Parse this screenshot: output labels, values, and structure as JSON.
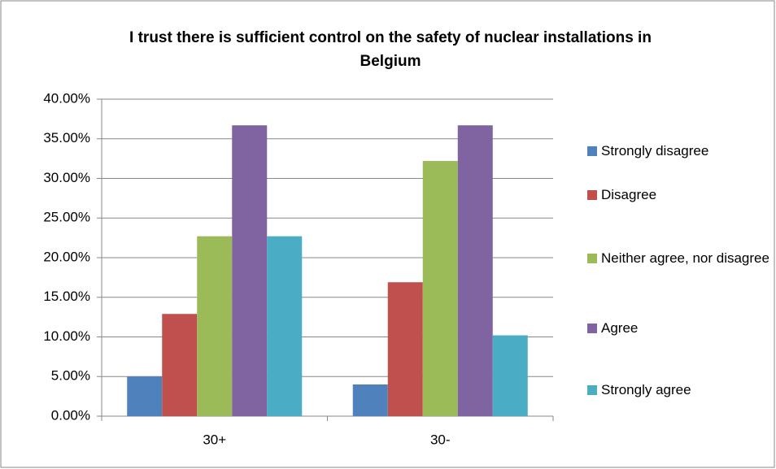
{
  "chart_data": {
    "type": "bar",
    "title": "I trust there is sufficient control on the safety of nuclear installations in Belgium",
    "categories": [
      "30+",
      "30-"
    ],
    "series": [
      {
        "name": "Strongly disagree",
        "color": "#4f81bd",
        "values": [
          5.0,
          4.0
        ]
      },
      {
        "name": "Disagree",
        "color": "#c0504d",
        "values": [
          12.9,
          16.9
        ]
      },
      {
        "name": "Neither agree, nor disagree",
        "color": "#9bbb59",
        "values": [
          22.7,
          32.2
        ]
      },
      {
        "name": "Agree",
        "color": "#8064a2",
        "values": [
          36.7,
          36.7
        ]
      },
      {
        "name": "Strongly agree",
        "color": "#4bacc6",
        "values": [
          22.7,
          10.2
        ]
      }
    ],
    "ylim": [
      0,
      40
    ],
    "yticks": [
      {
        "value": 0,
        "label": "0.00%"
      },
      {
        "value": 5,
        "label": "5.00%"
      },
      {
        "value": 10,
        "label": "10.00%"
      },
      {
        "value": 15,
        "label": "15.00%"
      },
      {
        "value": 20,
        "label": "20.00%"
      },
      {
        "value": 25,
        "label": "25.00%"
      },
      {
        "value": 30,
        "label": "30.00%"
      },
      {
        "value": 35,
        "label": "35.00%"
      },
      {
        "value": 40,
        "label": "40.00%"
      }
    ],
    "grid": true,
    "legend": "right"
  }
}
